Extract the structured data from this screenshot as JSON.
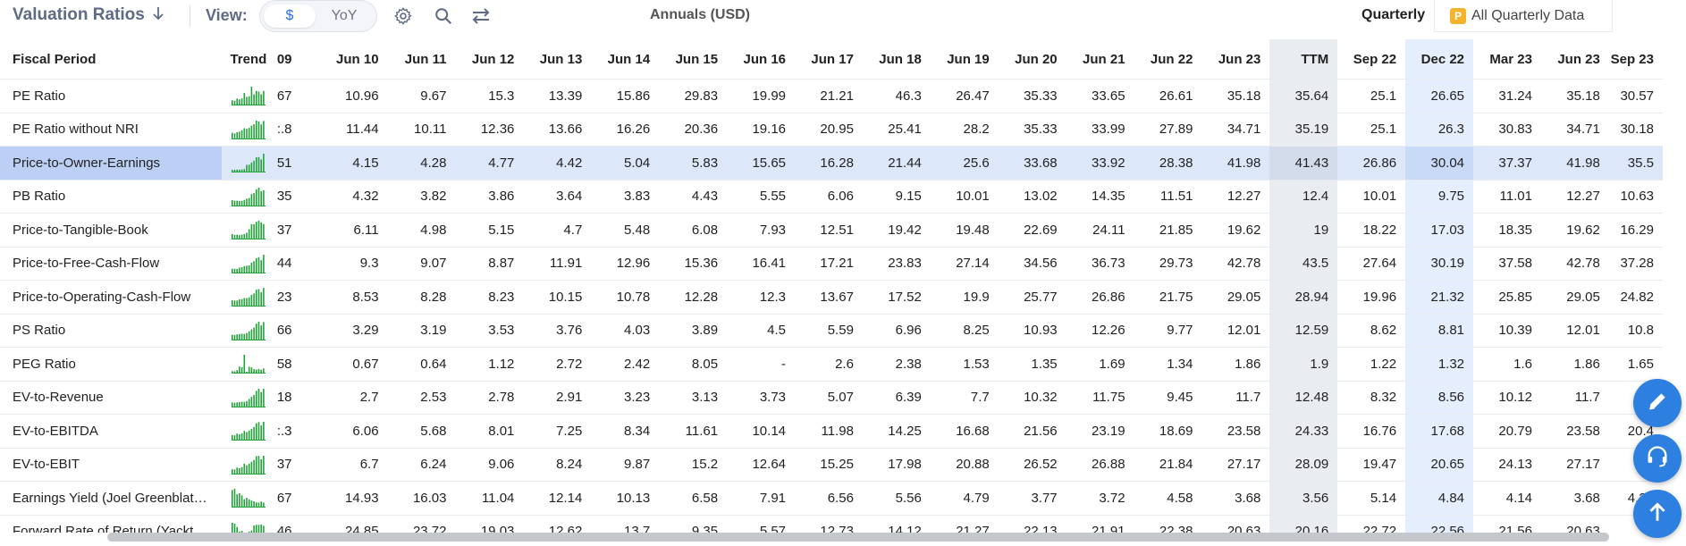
{
  "toolbar": {
    "title": "Valuation Ratios",
    "view_label": "View:",
    "toggle": {
      "option1": "$",
      "option2": "YoY"
    },
    "annuals_label": "Annuals (USD)",
    "quarterly_label": "Quarterly",
    "all_quarterly_badge": "P",
    "all_quarterly_label": "All Quarterly Data"
  },
  "table": {
    "header_fiscal": "Fiscal Period",
    "header_trend": "Trend",
    "columns": [
      "09",
      "Jun 10",
      "Jun 11",
      "Jun 12",
      "Jun 13",
      "Jun 14",
      "Jun 15",
      "Jun 16",
      "Jun 17",
      "Jun 18",
      "Jun 19",
      "Jun 20",
      "Jun 21",
      "Jun 22",
      "Jun 23",
      "TTM",
      "Sep 22",
      "Dec 22",
      "Mar 23",
      "Jun 23",
      "Sep 23"
    ],
    "rows": [
      {
        "name": "PE Ratio",
        "values": [
          "67",
          "10.96",
          "9.67",
          "15.3",
          "13.39",
          "15.86",
          "29.83",
          "19.99",
          "21.21",
          "46.3",
          "26.47",
          "35.33",
          "33.65",
          "26.61",
          "35.18",
          "35.64",
          "25.1",
          "26.65",
          "31.24",
          "35.18",
          "30.57"
        ]
      },
      {
        "name": "PE Ratio without NRI",
        "values": [
          ":.8",
          "11.44",
          "10.11",
          "12.36",
          "13.66",
          "16.26",
          "20.36",
          "19.16",
          "20.95",
          "25.41",
          "28.2",
          "35.33",
          "33.99",
          "27.89",
          "34.71",
          "35.19",
          "25.1",
          "26.3",
          "30.83",
          "34.71",
          "30.18"
        ]
      },
      {
        "name": "Price-to-Owner-Earnings",
        "values": [
          "51",
          "4.15",
          "4.28",
          "4.77",
          "4.42",
          "5.04",
          "5.83",
          "15.65",
          "16.28",
          "21.44",
          "25.6",
          "33.68",
          "33.92",
          "28.38",
          "41.98",
          "41.43",
          "26.86",
          "30.04",
          "37.37",
          "41.98",
          "35.5"
        ]
      },
      {
        "name": "PB Ratio",
        "values": [
          "35",
          "4.32",
          "3.82",
          "3.86",
          "3.64",
          "3.83",
          "4.43",
          "5.55",
          "6.06",
          "9.15",
          "10.01",
          "13.02",
          "14.35",
          "11.51",
          "12.27",
          "12.4",
          "10.01",
          "9.75",
          "11.01",
          "12.27",
          "10.63"
        ]
      },
      {
        "name": "Price-to-Tangible-Book",
        "values": [
          "37",
          "6.11",
          "4.98",
          "5.15",
          "4.7",
          "5.48",
          "6.08",
          "7.93",
          "12.51",
          "19.42",
          "19.48",
          "22.69",
          "24.11",
          "21.85",
          "19.62",
          "19",
          "18.22",
          "17.03",
          "18.35",
          "19.62",
          "16.29"
        ]
      },
      {
        "name": "Price-to-Free-Cash-Flow",
        "values": [
          "44",
          "9.3",
          "9.07",
          "8.87",
          "11.91",
          "12.96",
          "15.36",
          "16.41",
          "17.21",
          "23.83",
          "27.14",
          "34.56",
          "36.73",
          "29.73",
          "42.78",
          "43.5",
          "27.64",
          "30.19",
          "37.58",
          "42.78",
          "37.28"
        ]
      },
      {
        "name": "Price-to-Operating-Cash-Flow",
        "values": [
          "23",
          "8.53",
          "8.28",
          "8.23",
          "10.15",
          "10.78",
          "12.28",
          "12.3",
          "13.67",
          "17.52",
          "19.9",
          "25.77",
          "26.86",
          "21.75",
          "29.05",
          "28.94",
          "19.96",
          "21.32",
          "25.85",
          "29.05",
          "24.82"
        ]
      },
      {
        "name": "PS Ratio",
        "values": [
          "66",
          "3.29",
          "3.19",
          "3.53",
          "3.76",
          "4.03",
          "3.89",
          "4.5",
          "5.59",
          "6.96",
          "8.25",
          "10.93",
          "12.26",
          "9.77",
          "12.01",
          "12.59",
          "8.62",
          "8.81",
          "10.39",
          "12.01",
          "10.8"
        ]
      },
      {
        "name": "PEG Ratio",
        "values": [
          "58",
          "0.67",
          "0.64",
          "1.12",
          "2.72",
          "2.42",
          "8.05",
          "-",
          "2.6",
          "2.38",
          "1.53",
          "1.35",
          "1.69",
          "1.34",
          "1.86",
          "1.9",
          "1.22",
          "1.32",
          "1.6",
          "1.86",
          "1.65"
        ]
      },
      {
        "name": "EV-to-Revenue",
        "values": [
          "18",
          "2.7",
          "2.53",
          "2.78",
          "2.91",
          "3.23",
          "3.13",
          "3.73",
          "5.07",
          "6.39",
          "7.7",
          "10.32",
          "11.75",
          "9.45",
          "11.7",
          "12.48",
          "8.32",
          "8.56",
          "10.12",
          "11.7",
          "10"
        ]
      },
      {
        "name": "EV-to-EBITDA",
        "values": [
          ":.3",
          "6.06",
          "5.68",
          "8.01",
          "7.25",
          "8.34",
          "11.61",
          "10.14",
          "11.98",
          "14.25",
          "16.68",
          "21.56",
          "23.19",
          "18.69",
          "23.58",
          "24.33",
          "16.76",
          "17.68",
          "20.79",
          "23.58",
          "20.4"
        ]
      },
      {
        "name": "EV-to-EBIT",
        "values": [
          "37",
          "6.7",
          "6.24",
          "9.06",
          "8.24",
          "9.87",
          "15.2",
          "12.64",
          "15.25",
          "17.98",
          "20.88",
          "26.52",
          "26.88",
          "21.84",
          "27.17",
          "28.09",
          "19.47",
          "20.65",
          "24.13",
          "27.17",
          "2"
        ]
      },
      {
        "name": "Earnings Yield (Joel Greenblat…",
        "values": [
          "67",
          "14.93",
          "16.03",
          "11.04",
          "12.14",
          "10.13",
          "6.58",
          "7.91",
          "6.56",
          "5.56",
          "4.79",
          "3.77",
          "3.72",
          "4.58",
          "3.68",
          "3.56",
          "5.14",
          "4.84",
          "4.14",
          "3.68",
          "4.24"
        ]
      },
      {
        "name": "Forward Rate of Return (Yackt…",
        "values": [
          "46",
          "24.85",
          "23.72",
          "19.03",
          "12.62",
          "13.7",
          "9.35",
          "5.57",
          "12.73",
          "14.12",
          "21.27",
          "22.13",
          "21.91",
          "22.38",
          "20.63",
          "20.16",
          "22.72",
          "22.56",
          "21.56",
          "20.63",
          "2"
        ]
      }
    ]
  },
  "colors": {
    "accent": "#2d7fe0",
    "spark": "#22a33a",
    "selected_row": "#dde7fa",
    "ttm_bg": "#e9ecf1",
    "highlight_col": "#e5eefc"
  },
  "icons": [
    "sort-down-icon",
    "gear-icon",
    "search-icon",
    "swap-icon",
    "edit-icon",
    "headset-icon",
    "arrow-up-icon"
  ]
}
